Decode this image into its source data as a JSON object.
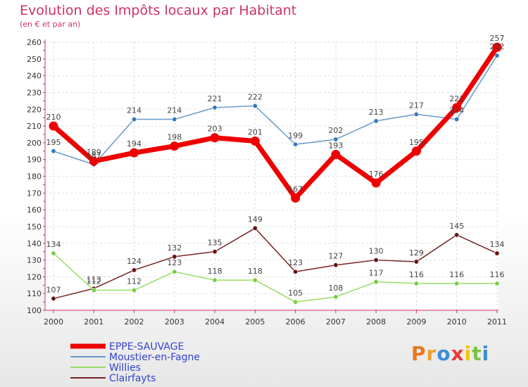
{
  "title": "Evolution des Impôts locaux par Habitant",
  "subtitle": "(en € et par an)",
  "logo": {
    "text": "Proxiti",
    "letters": [
      {
        "ch": "P",
        "color": "#e87722"
      },
      {
        "ch": "r",
        "color": "#f0a030"
      },
      {
        "ch": "o",
        "color": "#3b8fd8"
      },
      {
        "ch": "x",
        "color": "#e83a3a"
      },
      {
        "ch": "i",
        "color": "#f5c400"
      },
      {
        "ch": "t",
        "color": "#7cc242"
      },
      {
        "ch": "i",
        "color": "#3b8fd8"
      }
    ]
  },
  "chart_data": {
    "type": "line",
    "x": [
      "2000",
      "2001",
      "2002",
      "2003",
      "2004",
      "2005",
      "2006",
      "2007",
      "2008",
      "2009",
      "2010",
      "2011"
    ],
    "ylim": [
      100,
      260
    ],
    "yticks": [
      100,
      110,
      120,
      130,
      140,
      150,
      160,
      170,
      180,
      190,
      200,
      210,
      220,
      230,
      240,
      250,
      260
    ],
    "grid": true,
    "legend": "bottom-left",
    "series": [
      {
        "name": "EPPE-SAUVAGE",
        "color": "#ee0000",
        "marker": "#dd0000",
        "width": 7,
        "values": [
          210,
          189,
          194,
          198,
          203,
          201,
          167,
          193,
          176,
          195,
          221,
          257
        ],
        "labels": [
          "210",
          "189",
          "194",
          "198",
          "203",
          "201",
          "167",
          "193",
          "176",
          "195",
          "221",
          "257"
        ]
      },
      {
        "name": "Moustier-en-Fagne",
        "color": "#6699cc",
        "marker": "#3377bb",
        "width": 1.5,
        "values": [
          195,
          187,
          214,
          214,
          221,
          222,
          199,
          202,
          213,
          217,
          214,
          252
        ],
        "labels": [
          "195",
          "187",
          "214",
          "214",
          "221",
          "222",
          "199",
          "202",
          "213",
          "217",
          "214",
          "252"
        ]
      },
      {
        "name": "Willies",
        "color": "#99dd66",
        "marker": "#77cc44",
        "width": 1.5,
        "values": [
          134,
          112,
          112,
          123,
          118,
          118,
          105,
          108,
          117,
          116,
          116,
          116
        ],
        "labels": [
          "134",
          "112",
          "112",
          "123",
          "118",
          "118",
          "105",
          "108",
          "117",
          "116",
          "116",
          "116"
        ]
      },
      {
        "name": "Clairfayts",
        "color": "#772222",
        "marker": "#661111",
        "width": 1.5,
        "values": [
          107,
          113,
          124,
          132,
          135,
          149,
          123,
          127,
          130,
          129,
          145,
          134
        ],
        "labels": [
          "107",
          "113",
          "124",
          "132",
          "135",
          "149",
          "123",
          "127",
          "130",
          "129",
          "145",
          "134"
        ]
      }
    ]
  }
}
